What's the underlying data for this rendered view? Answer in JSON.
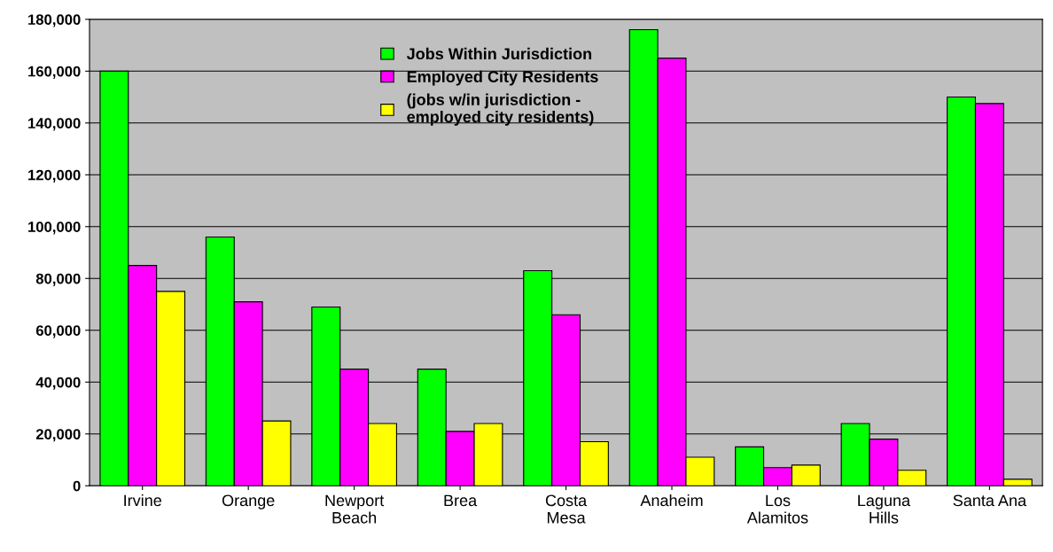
{
  "chart_data": {
    "type": "bar",
    "categories": [
      "Irvine",
      "Orange",
      "Newport\nBeach",
      "Brea",
      "Costa\nMesa",
      "Anaheim",
      "Los\nAlamitos",
      "Laguna\nHills",
      "Santa Ana"
    ],
    "series": [
      {
        "name": "Jobs Within Jurisdiction",
        "color": "#00ff00",
        "values": [
          160000,
          96000,
          69000,
          45000,
          83000,
          176000,
          15000,
          24000,
          150000
        ]
      },
      {
        "name": "Employed City Residents",
        "color": "#ff00ff",
        "values": [
          85000,
          71000,
          45000,
          21000,
          66000,
          165000,
          7000,
          18000,
          147500
        ]
      },
      {
        "name": "(jobs w/in jurisdiction -\nemployed city residents)",
        "color": "#ffff00",
        "values": [
          75000,
          25000,
          24000,
          24000,
          17000,
          11000,
          8000,
          6000,
          2500
        ]
      }
    ],
    "ylim": [
      0,
      180000
    ],
    "yticks": [
      {
        "value": 0,
        "label": "0"
      },
      {
        "value": 20000,
        "label": "20,000"
      },
      {
        "value": 40000,
        "label": "40,000"
      },
      {
        "value": 60000,
        "label": "60,000"
      },
      {
        "value": 80000,
        "label": "80,000"
      },
      {
        "value": 100000,
        "label": "100,000"
      },
      {
        "value": 120000,
        "label": "120,000"
      },
      {
        "value": 140000,
        "label": "140,000"
      },
      {
        "value": 160000,
        "label": "160,000"
      },
      {
        "value": 180000,
        "label": "180,000"
      }
    ],
    "grid": "y",
    "legend": "top"
  }
}
